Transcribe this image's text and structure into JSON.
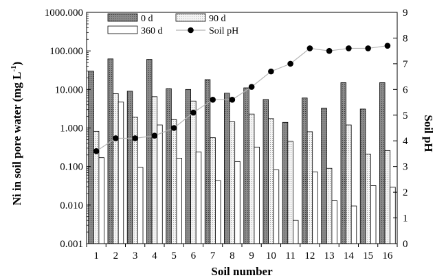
{
  "chart_data": {
    "type": "bar",
    "categories": [
      "1",
      "2",
      "3",
      "4",
      "5",
      "6",
      "7",
      "8",
      "9",
      "10",
      "11",
      "12",
      "13",
      "14",
      "15",
      "16"
    ],
    "series": [
      {
        "name": "0 d",
        "axis": "left",
        "kind": "bar",
        "pattern": "dark-dotted",
        "values": [
          30,
          62,
          9,
          60,
          10.5,
          10,
          18,
          8,
          11,
          5.5,
          1.4,
          6,
          3.3,
          15,
          3.1,
          15
        ]
      },
      {
        "name": "90 d",
        "axis": "left",
        "kind": "bar",
        "pattern": "light-dotted",
        "values": [
          0.82,
          7.8,
          1.9,
          6.5,
          1.65,
          5.0,
          0.56,
          1.45,
          2.3,
          1.75,
          0.45,
          0.8,
          0.09,
          1.2,
          0.21,
          0.26
        ]
      },
      {
        "name": "360 d",
        "axis": "left",
        "kind": "bar",
        "pattern": "white",
        "values": [
          0.17,
          4.7,
          0.095,
          1.2,
          0.165,
          0.24,
          0.043,
          0.135,
          0.32,
          0.082,
          0.004,
          0.072,
          0.013,
          0.0095,
          0.032,
          0.029
        ]
      },
      {
        "name": "Soil pH",
        "axis": "right",
        "kind": "line",
        "values": [
          3.6,
          4.1,
          4.1,
          4.2,
          4.5,
          5.1,
          5.6,
          5.6,
          6.1,
          6.7,
          7.0,
          7.6,
          7.5,
          7.6,
          7.6,
          7.7
        ]
      }
    ],
    "xlabel": "Soil number",
    "ylabel": "Ni in soil pore water (mg L",
    "ylabel_superscript": "-1",
    "ylabel_suffix": ")",
    "y2label": "Soil pH",
    "yscale": "log",
    "ylim": [
      0.001,
      1000
    ],
    "y2lim": [
      0,
      9
    ],
    "yticks": [
      "0.001",
      "0.010",
      "0.100",
      "1.000",
      "10.000",
      "100.000",
      "1000.000"
    ],
    "y2ticks": [
      "0",
      "1",
      "2",
      "3",
      "4",
      "5",
      "6",
      "7",
      "8",
      "9"
    ],
    "legend_position": "top-left",
    "grid": false,
    "colors": {
      "bar_dark": "#8a8a8a",
      "bar_light": "#f2f2f2",
      "line": "#b5b5b5",
      "marker": "#000000"
    }
  }
}
